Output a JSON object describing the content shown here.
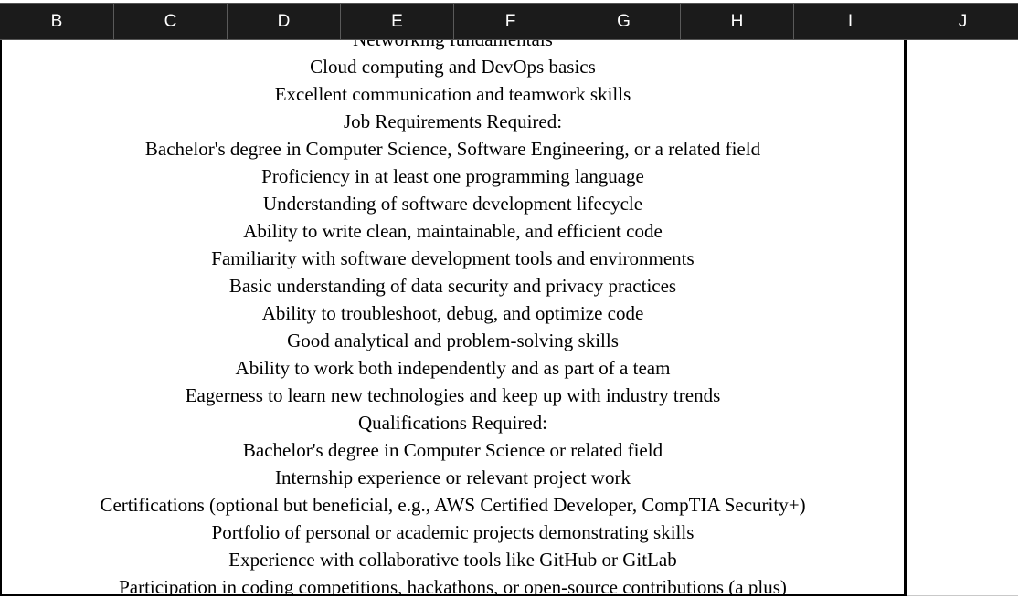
{
  "columns": [
    "B",
    "C",
    "D",
    "E",
    "F",
    "G",
    "H",
    "I",
    "J"
  ],
  "cell": {
    "lines": [
      "Networking fundamentals",
      "Cloud computing and DevOps basics",
      "Excellent communication and teamwork skills",
      "Job Requirements Required:",
      "Bachelor's degree in Computer Science, Software Engineering, or a related field",
      "Proficiency in at least one programming language",
      "Understanding of software development lifecycle",
      "Ability to write clean, maintainable, and efficient code",
      "Familiarity with software development tools and environments",
      "Basic understanding of data security and privacy practices",
      "Ability to troubleshoot, debug, and optimize code",
      "Good analytical and problem-solving skills",
      "Ability to work both independently and as part of a team",
      "Eagerness to learn new technologies and keep up with industry trends",
      "Qualifications Required:",
      "Bachelor's degree in Computer Science or related field",
      "Internship experience or relevant project work",
      "Certifications (optional but beneficial, e.g., AWS Certified Developer, CompTIA Security+)",
      "Portfolio of personal or academic projects demonstrating skills",
      "Experience with collaborative tools like GitHub or GitLab",
      "Participation in coding competitions, hackathons, or open-source contributions (a plus)"
    ]
  }
}
